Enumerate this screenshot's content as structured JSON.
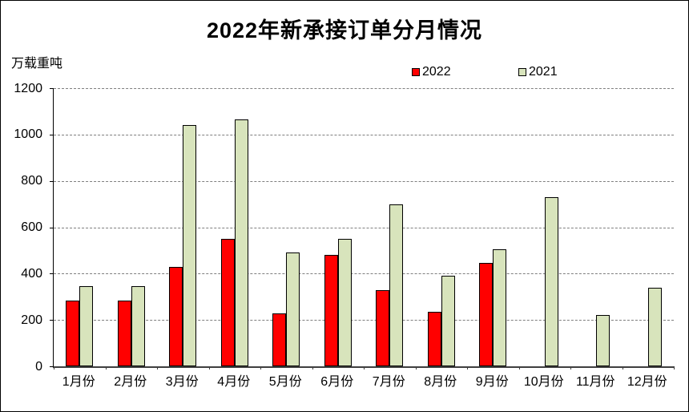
{
  "chart_data": {
    "type": "bar",
    "title": "2022年新承接订单分月情况",
    "ylabel": "万载重吨",
    "xlabel": "",
    "categories": [
      "1月份",
      "2月份",
      "3月份",
      "4月份",
      "5月份",
      "6月份",
      "7月份",
      "8月份",
      "9月份",
      "10月份",
      "11月份",
      "12月份"
    ],
    "series": [
      {
        "name": "2022",
        "color": "#ff0000",
        "values": [
          285,
          285,
          430,
          550,
          230,
          480,
          330,
          235,
          445,
          null,
          null,
          null
        ]
      },
      {
        "name": "2021",
        "color": "#d8e4bc",
        "values": [
          345,
          345,
          1040,
          1065,
          490,
          550,
          700,
          390,
          505,
          730,
          220,
          340
        ]
      }
    ],
    "ylim": [
      0,
      1200
    ],
    "yticks": [
      0,
      200,
      400,
      600,
      800,
      1000,
      1200
    ],
    "grid": "horizontal-dashed",
    "legend_position": "top-center"
  }
}
